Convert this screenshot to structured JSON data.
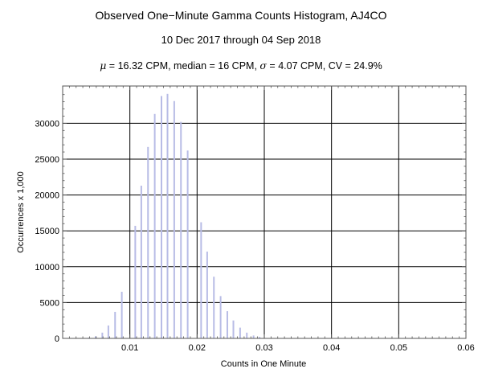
{
  "header": {
    "title": "Observed One−Minute Gamma Counts Histogram, AJ4CO",
    "subtitle": "10 Dec 2017 through 04 Sep 2018",
    "stats": {
      "mean_symbol": "μ",
      "mean_text": " = 16.32 CPM,   median = 16 CPM,   ",
      "sd_symbol": "σ",
      "sd_text": " = 4.07 CPM,   CV = 24.9%"
    }
  },
  "colors": {
    "bar": "#b8bce6",
    "grid": "#000000",
    "frame": "#555555"
  },
  "chart_data": {
    "type": "bar",
    "title": "Observed One−Minute Gamma Counts Histogram, AJ4CO",
    "subtitle": "10 Dec 2017 through 04 Sep 2018",
    "xlabel": "Counts in One Minute",
    "ylabel": "Occurrences x 1,000",
    "xlim": [
      0,
      0.06
    ],
    "ylim": [
      0,
      35000
    ],
    "xticks": [
      0.01,
      0.02,
      0.03,
      0.04,
      0.05,
      0.06
    ],
    "xtick_labels": [
      "0.01",
      "0.02",
      "0.03",
      "0.04",
      "0.05",
      "0.06"
    ],
    "yticks": [
      0,
      5000,
      10000,
      15000,
      20000,
      25000,
      30000
    ],
    "ytick_labels": [
      "0",
      "5000",
      "10000",
      "15000",
      "20000",
      "25000",
      "30000"
    ],
    "grid": true,
    "bars": [
      {
        "x": 0.0039,
        "y": 100
      },
      {
        "x": 0.0049,
        "y": 300
      },
      {
        "x": 0.0059,
        "y": 800
      },
      {
        "x": 0.0068,
        "y": 1800
      },
      {
        "x": 0.0078,
        "y": 3700
      },
      {
        "x": 0.0088,
        "y": 6500
      },
      {
        "x": 0.0108,
        "y": 15700
      },
      {
        "x": 0.0117,
        "y": 21300
      },
      {
        "x": 0.0127,
        "y": 26700
      },
      {
        "x": 0.0137,
        "y": 31300
      },
      {
        "x": 0.0147,
        "y": 33800
      },
      {
        "x": 0.0156,
        "y": 34100
      },
      {
        "x": 0.0166,
        "y": 33100
      },
      {
        "x": 0.0176,
        "y": 30200
      },
      {
        "x": 0.0186,
        "y": 26200
      },
      {
        "x": 0.0206,
        "y": 16200
      },
      {
        "x": 0.0215,
        "y": 12100
      },
      {
        "x": 0.0225,
        "y": 8600
      },
      {
        "x": 0.0235,
        "y": 5900
      },
      {
        "x": 0.0245,
        "y": 3800
      },
      {
        "x": 0.0254,
        "y": 2500
      },
      {
        "x": 0.0264,
        "y": 1500
      },
      {
        "x": 0.0274,
        "y": 800
      },
      {
        "x": 0.0284,
        "y": 400
      },
      {
        "x": 0.0293,
        "y": 200
      }
    ]
  }
}
